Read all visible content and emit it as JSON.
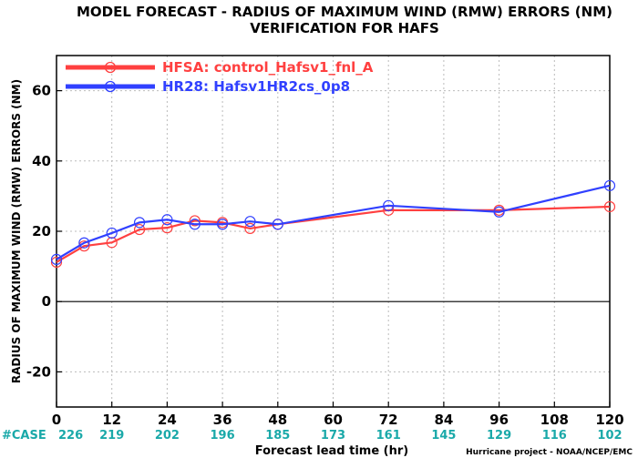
{
  "chart_data": {
    "type": "line",
    "title": "MODEL FORECAST - RADIUS OF MAXIMUM WIND (RMW) ERRORS (NM)",
    "subtitle": "VERIFICATION FOR HAFS",
    "xlabel": "Forecast lead time (hr)",
    "ylabel": "RADIUS OF MAXIMUM WIND (RMW) ERRORS (NM)",
    "xlim": [
      0,
      120
    ],
    "ylim": [
      -30,
      70
    ],
    "xticks": [
      "0",
      "12",
      "24",
      "36",
      "48",
      "60",
      "72",
      "84",
      "96",
      "108",
      "120"
    ],
    "yticks": [
      "-20",
      "0",
      "20",
      "40",
      "60"
    ],
    "grid": true,
    "legend_position": "top-left",
    "series": [
      {
        "name": "HFSA: control_Hafsv1_fnl_A",
        "color": "#ff4040",
        "x": [
          0,
          6,
          12,
          18,
          24,
          30,
          36,
          42,
          48,
          72,
          96,
          120
        ],
        "y": [
          11.2,
          15.8,
          16.8,
          20.5,
          21.0,
          23.0,
          22.5,
          20.8,
          22.0,
          26.0,
          26.0,
          27.0
        ]
      },
      {
        "name": "HR28: Hafsv1HR2cs_0p8",
        "color": "#3040ff",
        "x": [
          0,
          6,
          12,
          18,
          24,
          30,
          36,
          42,
          48,
          72,
          96,
          120
        ],
        "y": [
          12.0,
          16.7,
          19.5,
          22.5,
          23.3,
          22.0,
          22.0,
          22.8,
          22.0,
          27.3,
          25.5,
          33.0
        ]
      }
    ],
    "case_label": "#CASE",
    "case_counts": [
      {
        "x": 0,
        "label": "226"
      },
      {
        "x": 12,
        "label": "219"
      },
      {
        "x": 24,
        "label": "202"
      },
      {
        "x": 36,
        "label": "196"
      },
      {
        "x": 48,
        "label": "185"
      },
      {
        "x": 60,
        "label": "173"
      },
      {
        "x": 72,
        "label": "161"
      },
      {
        "x": 84,
        "label": "145"
      },
      {
        "x": 96,
        "label": "129"
      },
      {
        "x": 108,
        "label": "116"
      },
      {
        "x": 120,
        "label": "102"
      }
    ],
    "credit": "Hurricane project - NOAA/NCEP/EMC"
  }
}
